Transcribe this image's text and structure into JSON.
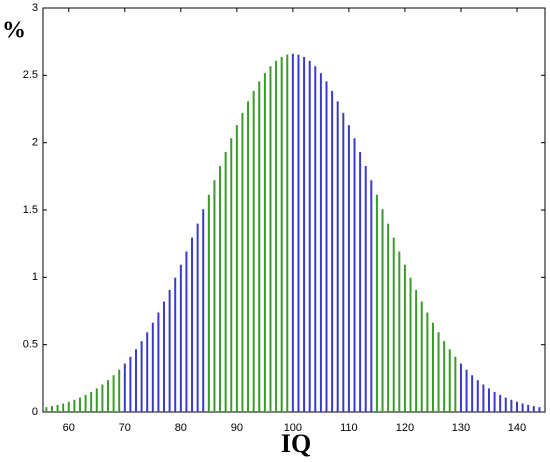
{
  "chart_data": {
    "type": "bar",
    "x_label": "IQ",
    "y_label": "%",
    "x": [
      56,
      57,
      58,
      59,
      60,
      61,
      62,
      63,
      64,
      65,
      66,
      67,
      68,
      69,
      70,
      71,
      72,
      73,
      74,
      75,
      76,
      77,
      78,
      79,
      80,
      81,
      82,
      83,
      84,
      85,
      86,
      87,
      88,
      89,
      90,
      91,
      92,
      93,
      94,
      95,
      96,
      97,
      98,
      99,
      100,
      101,
      102,
      103,
      104,
      105,
      106,
      107,
      108,
      109,
      110,
      111,
      112,
      113,
      114,
      115,
      116,
      117,
      118,
      119,
      120,
      121,
      122,
      123,
      124,
      125,
      126,
      127,
      128,
      129,
      130,
      131,
      132,
      133,
      134,
      135,
      136,
      137,
      138,
      139,
      140,
      141,
      142,
      143,
      144
    ],
    "series": [
      {
        "color": "#3a9a2a",
        "values": [
          0.036,
          0.044,
          0.053,
          0.063,
          0.076,
          0.091,
          0.107,
          0.127,
          0.149,
          0.175,
          0.204,
          0.236,
          0.273,
          0.314,
          null,
          null,
          null,
          null,
          null,
          null,
          null,
          null,
          null,
          null,
          null,
          null,
          null,
          null,
          null,
          1.613,
          1.721,
          1.827,
          1.931,
          2.033,
          2.13,
          2.221,
          2.307,
          2.385,
          2.455,
          2.516,
          2.567,
          2.607,
          2.636,
          2.654,
          null,
          null,
          null,
          null,
          null,
          null,
          null,
          null,
          null,
          null,
          null,
          null,
          null,
          null,
          null,
          1.613,
          1.506,
          1.399,
          1.295,
          1.192,
          1.093,
          0.998,
          0.907,
          0.821,
          0.739,
          0.663,
          0.592,
          0.526,
          0.466,
          0.41,
          null,
          null,
          null,
          null,
          null,
          null,
          null,
          null,
          null,
          null,
          null,
          null,
          null,
          null,
          null
        ]
      },
      {
        "color": "#3a3ac8",
        "values": [
          null,
          null,
          null,
          null,
          null,
          null,
          null,
          null,
          null,
          null,
          null,
          null,
          null,
          null,
          0.36,
          0.41,
          0.466,
          0.526,
          0.592,
          0.663,
          0.739,
          0.821,
          0.907,
          0.998,
          1.093,
          1.192,
          1.295,
          1.399,
          1.506,
          null,
          null,
          null,
          null,
          null,
          null,
          null,
          null,
          null,
          null,
          null,
          null,
          null,
          null,
          null,
          2.66,
          2.654,
          2.636,
          2.607,
          2.567,
          2.516,
          2.455,
          2.385,
          2.307,
          2.221,
          2.13,
          2.033,
          1.931,
          1.827,
          1.721,
          null,
          null,
          null,
          null,
          null,
          null,
          null,
          null,
          null,
          null,
          null,
          null,
          null,
          null,
          null,
          0.36,
          0.314,
          0.273,
          0.236,
          0.204,
          0.175,
          0.149,
          0.127,
          0.107,
          0.091,
          0.076,
          0.063,
          0.053,
          0.044,
          0.036
        ]
      }
    ],
    "xlim": [
      55.4,
      145
    ],
    "ylim": [
      0,
      3
    ],
    "xticks": [
      60,
      70,
      80,
      90,
      100,
      110,
      120,
      130,
      140
    ],
    "yticks": [
      0,
      0.5,
      1,
      1.5,
      2,
      2.5,
      3
    ]
  }
}
